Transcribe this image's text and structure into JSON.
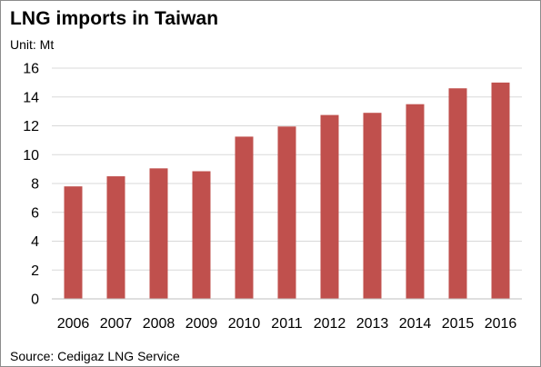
{
  "chart_data": {
    "type": "bar",
    "title": "LNG imports in Taiwan",
    "subtitle": "Unit: Mt",
    "source": "Source: Cedigaz LNG Service",
    "categories": [
      "2006",
      "2007",
      "2008",
      "2009",
      "2010",
      "2011",
      "2012",
      "2013",
      "2014",
      "2015",
      "2016"
    ],
    "values": [
      7.8,
      8.5,
      9.05,
      8.85,
      11.25,
      11.95,
      12.75,
      12.9,
      13.5,
      14.6,
      15.0
    ],
    "ylim": [
      0,
      16
    ],
    "yticks": [
      0,
      2,
      4,
      6,
      8,
      10,
      12,
      14,
      16
    ],
    "grid": true,
    "legend": "none",
    "bar_color": "#c0504d",
    "gridline_color": "#d9d9d9"
  }
}
